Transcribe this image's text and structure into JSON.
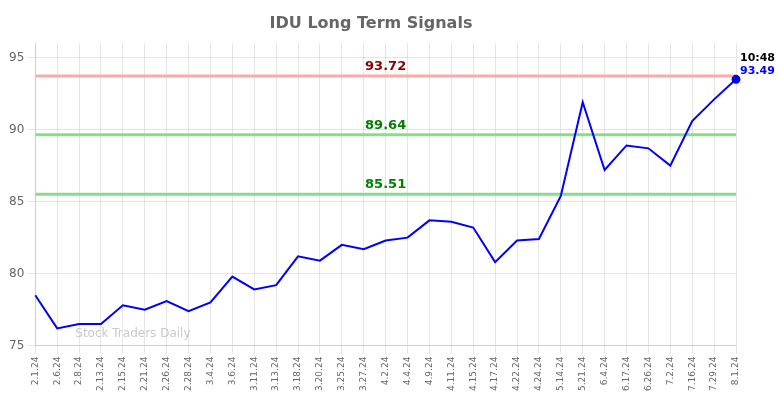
{
  "chart_data": {
    "type": "line",
    "title": "IDU Long Term Signals",
    "categories": [
      "2.1.24",
      "2.6.24",
      "2.8.24",
      "2.13.24",
      "2.15.24",
      "2.21.24",
      "2.26.24",
      "2.28.24",
      "3.4.24",
      "3.6.24",
      "3.11.24",
      "3.13.24",
      "3.18.24",
      "3.20.24",
      "3.25.24",
      "3.27.24",
      "4.2.24",
      "4.4.24",
      "4.9.24",
      "4.11.24",
      "4.15.24",
      "4.17.24",
      "4.22.24",
      "4.24.24",
      "5.14.24",
      "5.21.24",
      "6.4.24",
      "6.17.24",
      "6.26.24",
      "7.2.24",
      "7.16.24",
      "7.29.24",
      "8.1.24"
    ],
    "values": [
      78.5,
      76.2,
      76.5,
      76.5,
      77.8,
      77.5,
      78.1,
      77.4,
      78.0,
      79.8,
      78.9,
      79.2,
      81.2,
      80.9,
      82.0,
      81.7,
      82.3,
      82.5,
      83.7,
      83.6,
      83.2,
      80.8,
      82.3,
      82.4,
      85.4,
      91.9,
      87.2,
      88.9,
      88.7,
      87.5,
      90.6,
      92.1,
      93.49
    ],
    "color": "blue",
    "ylim": [
      75,
      96
    ],
    "yticks": [
      75,
      80,
      85,
      90,
      95
    ],
    "grid": true,
    "hlines": [
      {
        "value": 93.72,
        "color": "#ffaaaa",
        "label_color": "darkred"
      },
      {
        "value": 89.64,
        "color": "#88dd88",
        "label_color": "green"
      },
      {
        "value": 85.51,
        "color": "#88dd88",
        "label_color": "green"
      }
    ],
    "annotations": [
      {
        "text": "10:48",
        "color": "black"
      },
      {
        "text": "93.49",
        "color": "blue"
      }
    ],
    "watermark": "Stock Traders Daily"
  }
}
